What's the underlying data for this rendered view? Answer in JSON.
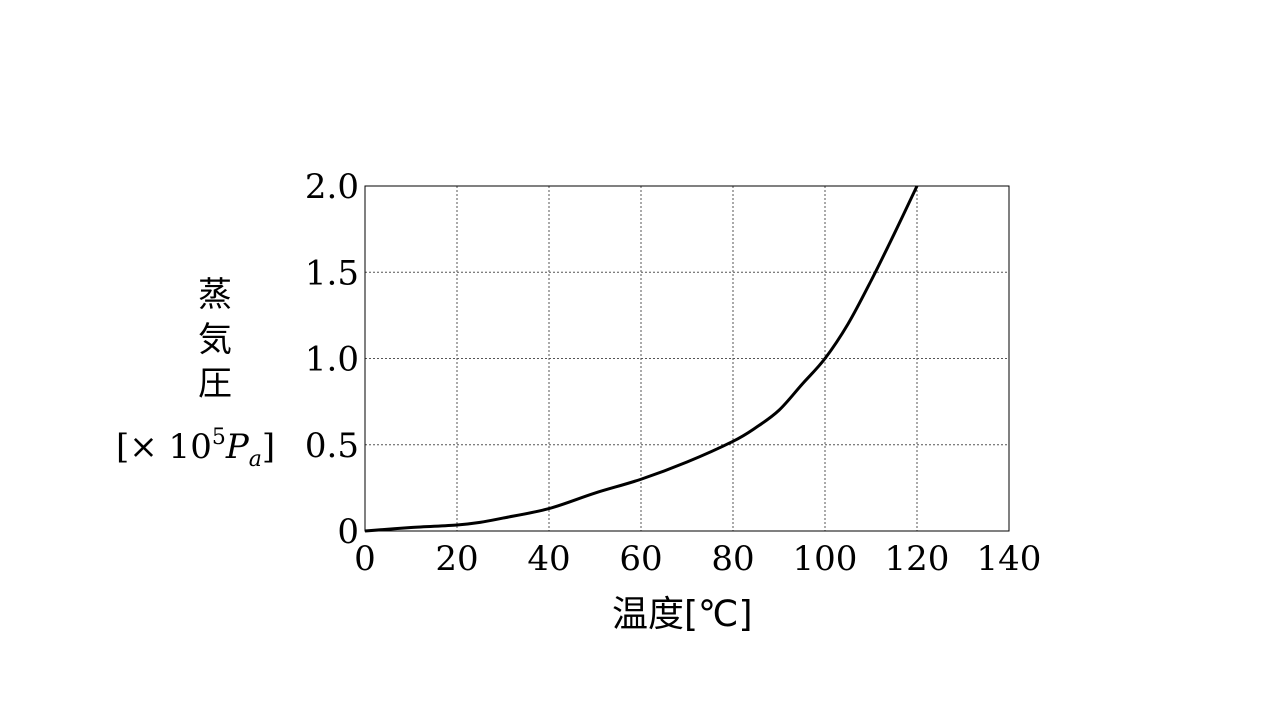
{
  "chart_data": {
    "type": "line",
    "xlabel": "温度[℃]",
    "ylabel_chars": [
      "蒸",
      "気",
      "圧"
    ],
    "ylabel_unit": {
      "open": "[× 10",
      "exp": "5",
      "p": "P",
      "sub": "a",
      "close": "]"
    },
    "xlim": [
      0,
      140
    ],
    "ylim": [
      0,
      2.0
    ],
    "x_ticks": [
      0,
      20,
      40,
      60,
      80,
      100,
      120,
      140
    ],
    "x_tick_labels": [
      "0",
      "20",
      "40",
      "60",
      "80",
      "100",
      "120",
      "140"
    ],
    "y_ticks": [
      0,
      0.5,
      1.0,
      1.5,
      2.0
    ],
    "y_tick_labels": [
      "0",
      "0.5",
      "1.0",
      "1.5",
      "2.0"
    ],
    "grid": true,
    "series": [
      {
        "color": "#000000",
        "x": [
          0,
          10,
          20,
          25,
          30,
          40,
          50,
          60,
          70,
          80,
          85,
          90,
          95,
          100,
          105,
          110,
          115,
          120
        ],
        "y": [
          0,
          0.02,
          0.035,
          0.05,
          0.075,
          0.13,
          0.22,
          0.3,
          0.4,
          0.52,
          0.6,
          0.7,
          0.85,
          1.0,
          1.2,
          1.45,
          1.72,
          2.0
        ]
      }
    ]
  }
}
